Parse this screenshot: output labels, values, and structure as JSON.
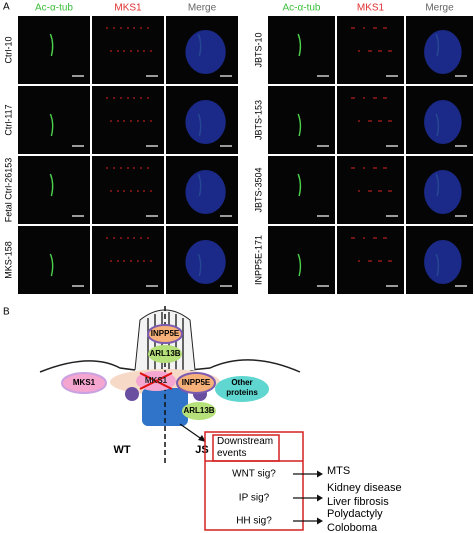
{
  "panel_a": {
    "label": "A",
    "left": {
      "columns": [
        "Ac-α-tub",
        "MKS1",
        "Merge"
      ],
      "rows": [
        "Ctrl-10",
        "Ctrl-117",
        "Fetal Ctrl-26153",
        "MKS-158"
      ]
    },
    "right": {
      "columns": [
        "Ac-α-tub",
        "MKS1",
        "Merge"
      ],
      "rows": [
        "JBTS-10",
        "JBTS-153",
        "JBTS-3504",
        "INPP5E-171"
      ]
    }
  },
  "panel_b": {
    "label": "B",
    "cilium": {
      "inpp5e": "INPP5E",
      "arl13b": "ARL13B"
    },
    "wt_mks1": "MKS1",
    "js_mks1": "MKS1",
    "js_inpp5e": "INPP5E",
    "other_proteins": "Other proteins",
    "js_arl13b": "ARL13B",
    "conditions": [
      "WT",
      "JS"
    ],
    "box_title": "Downstream events",
    "signals": [
      "WNT sig?",
      "IP sig?",
      "HH sig?"
    ],
    "outcomes": [
      [
        "MTS"
      ],
      [
        "Kidney disease",
        "Liver fibrosis"
      ],
      [
        "Polydactyly",
        "Coloboma"
      ]
    ]
  }
}
